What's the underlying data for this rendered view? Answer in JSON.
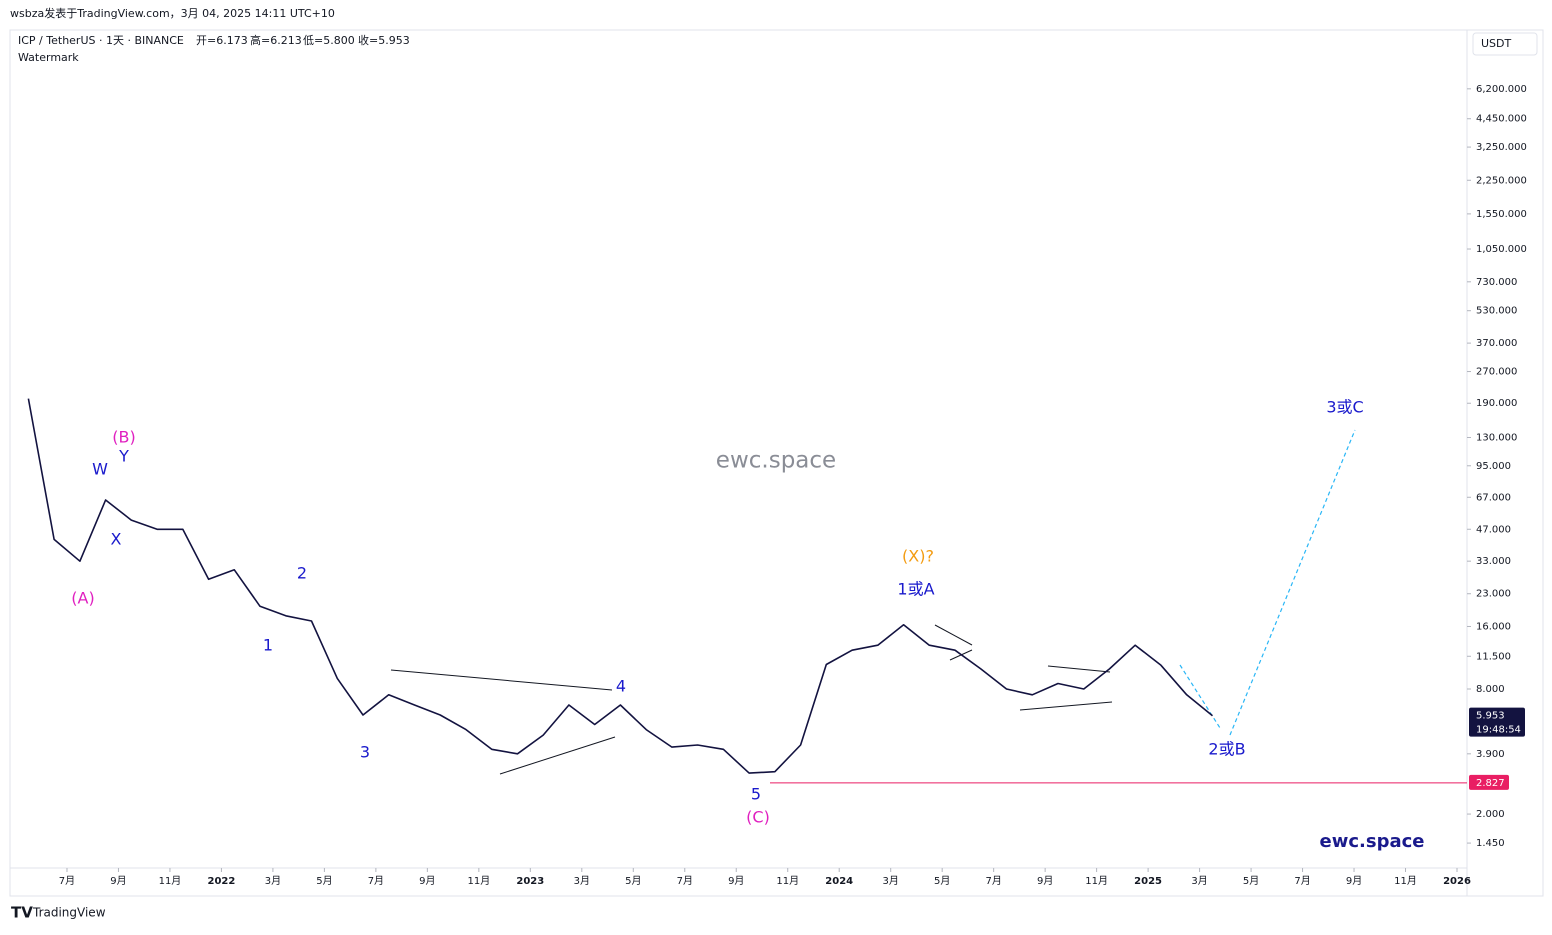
{
  "header": {
    "publisher": "wsbza发表于TradingView.com，3月 04, 2025 14:11 UTC+10",
    "symbol": "ICP / TetherUS · 1天 · BINANCE",
    "ohlc": [
      "开=6.173",
      "高=6.213",
      "低=5.800",
      "收=5.953"
    ],
    "watermark_label": "Watermark"
  },
  "footer": {
    "brand": "TradingView"
  },
  "chart_data": {
    "type": "line",
    "log_scale": true,
    "grid": false,
    "currency": "USDT",
    "watermark": "ewc.space",
    "signature": "ewc.space",
    "x": [
      "2021-05",
      "2021-06",
      "2021-07",
      "2021-08",
      "2021-09",
      "2021-10",
      "2021-11",
      "2021-12",
      "2022-01",
      "2022-02",
      "2022-03",
      "2022-04",
      "2022-05",
      "2022-06",
      "2022-07",
      "2022-08",
      "2022-09",
      "2022-10",
      "2022-11",
      "2022-12",
      "2023-01",
      "2023-02",
      "2023-03",
      "2023-04",
      "2023-05",
      "2023-06",
      "2023-07",
      "2023-08",
      "2023-09",
      "2023-10",
      "2023-11",
      "2023-12",
      "2024-01",
      "2024-02",
      "2024-03",
      "2024-04",
      "2024-05",
      "2024-06",
      "2024-07",
      "2024-08",
      "2024-09",
      "2024-10",
      "2024-11",
      "2024-12",
      "2025-01",
      "2025-02",
      "2025-03"
    ],
    "series": [
      {
        "name": "ICP / TetherUS",
        "color": "#131340",
        "values": [
          200,
          42,
          33,
          65,
          52,
          47,
          47,
          27,
          30,
          20,
          18,
          17,
          9,
          6,
          7.5,
          6.7,
          6,
          5.1,
          4.1,
          3.9,
          4.8,
          6.7,
          5.4,
          6.7,
          5.1,
          4.2,
          4.3,
          4.1,
          3.15,
          3.2,
          4.3,
          10.5,
          12.3,
          13,
          16.3,
          13,
          12.3,
          10,
          8,
          7.5,
          8.5,
          8,
          10,
          13,
          10.4,
          7.5,
          5.953
        ]
      }
    ],
    "xlim": [
      "2021-05",
      "2026-01"
    ],
    "xticks": [
      {
        "value": "2021-07",
        "label": "7月"
      },
      {
        "value": "2021-09",
        "label": "9月"
      },
      {
        "value": "2021-11",
        "label": "11月"
      },
      {
        "value": "2022-01",
        "label": "2022"
      },
      {
        "value": "2022-03",
        "label": "3月"
      },
      {
        "value": "2022-05",
        "label": "5月"
      },
      {
        "value": "2022-07",
        "label": "7月"
      },
      {
        "value": "2022-09",
        "label": "9月"
      },
      {
        "value": "2022-11",
        "label": "11月"
      },
      {
        "value": "2023-01",
        "label": "2023"
      },
      {
        "value": "2023-03",
        "label": "3月"
      },
      {
        "value": "2023-05",
        "label": "5月"
      },
      {
        "value": "2023-07",
        "label": "7月"
      },
      {
        "value": "2023-09",
        "label": "9月"
      },
      {
        "value": "2023-11",
        "label": "11月"
      },
      {
        "value": "2024-01",
        "label": "2024"
      },
      {
        "value": "2024-03",
        "label": "3月"
      },
      {
        "value": "2024-05",
        "label": "5月"
      },
      {
        "value": "2024-07",
        "label": "7月"
      },
      {
        "value": "2024-09",
        "label": "9月"
      },
      {
        "value": "2024-11",
        "label": "11月"
      },
      {
        "value": "2025-01",
        "label": "2025"
      },
      {
        "value": "2025-03",
        "label": "3月"
      },
      {
        "value": "2025-05",
        "label": "5月"
      },
      {
        "value": "2025-07",
        "label": "7月"
      },
      {
        "value": "2025-09",
        "label": "9月"
      },
      {
        "value": "2025-11",
        "label": "11月"
      },
      {
        "value": "2026-01",
        "label": "2026"
      }
    ],
    "ylim": [
      1.1,
      11900
    ],
    "yticks": [
      {
        "value": 1.45,
        "label": "1.450"
      },
      {
        "value": 2,
        "label": "2.000"
      },
      {
        "value": 3.9,
        "label": "3.900"
      },
      {
        "value": 8,
        "label": "8.000"
      },
      {
        "value": 11.5,
        "label": "11.500"
      },
      {
        "value": 16,
        "label": "16.000"
      },
      {
        "value": 23,
        "label": "23.000"
      },
      {
        "value": 33,
        "label": "33.000"
      },
      {
        "value": 47,
        "label": "47.000"
      },
      {
        "value": 67,
        "label": "67.000"
      },
      {
        "value": 95,
        "label": "95.000"
      },
      {
        "value": 130,
        "label": "130.000"
      },
      {
        "value": 190,
        "label": "190.000"
      },
      {
        "value": 270,
        "label": "270.000"
      },
      {
        "value": 370,
        "label": "370.000"
      },
      {
        "value": 530,
        "label": "530.000"
      },
      {
        "value": 730,
        "label": "730.000"
      },
      {
        "value": 1050,
        "label": "1,050.000"
      },
      {
        "value": 1550,
        "label": "1,550.000"
      },
      {
        "value": 2250,
        "label": "2,250.000"
      },
      {
        "value": 3250,
        "label": "3,250.000"
      },
      {
        "value": 4450,
        "label": "4,450.000"
      },
      {
        "value": 6200,
        "label": "6,200.000"
      }
    ],
    "price_tags": [
      {
        "value": 5.953,
        "color": "#131340",
        "countdown": "19:48:54"
      },
      {
        "value": 2.827,
        "color": "#e91e63"
      }
    ],
    "annotations": [
      {
        "text": "(A)",
        "color": "#e020c0"
      },
      {
        "text": "(B)",
        "color": "#e020c0"
      },
      {
        "text": "W",
        "color": "#1a1acc"
      },
      {
        "text": "Y",
        "color": "#1a1acc"
      },
      {
        "text": "X",
        "color": "#1a1acc"
      },
      {
        "text": "1",
        "color": "#1a1acc"
      },
      {
        "text": "2",
        "color": "#1a1acc"
      },
      {
        "text": "3",
        "color": "#1a1acc"
      },
      {
        "text": "4",
        "color": "#1a1acc"
      },
      {
        "text": "5",
        "color": "#1a1acc"
      },
      {
        "text": "(C)",
        "color": "#e020c0"
      },
      {
        "text": "(X)?",
        "color": "#f39c12"
      },
      {
        "text": "1或A",
        "color": "#1a1acc"
      },
      {
        "text": "2或B",
        "color": "#1a1acc"
      },
      {
        "text": "3或C",
        "color": "#1a1acc"
      }
    ]
  }
}
